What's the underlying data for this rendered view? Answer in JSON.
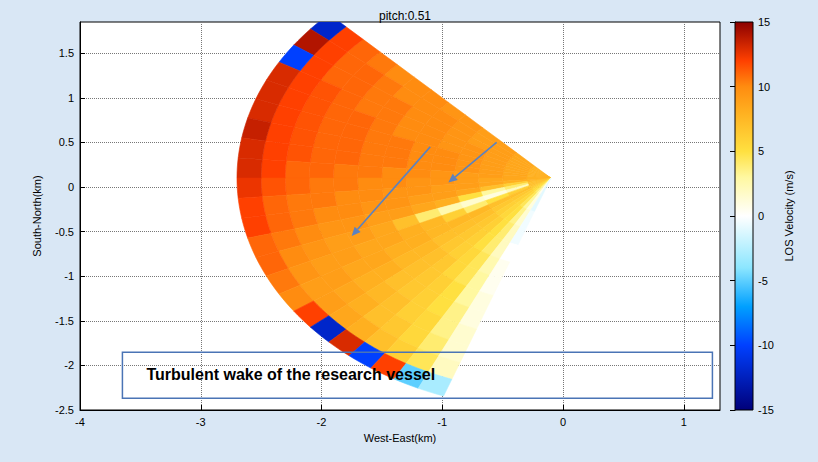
{
  "chart_data": {
    "type": "polar_heatmap",
    "title": "pitch:0.51",
    "x_label": "West-East(km)",
    "y_label": "South-North(km)",
    "xlim": [
      -4,
      1.3
    ],
    "xticks": [
      -4,
      -3,
      -2,
      -1,
      0,
      1
    ],
    "ylim": [
      -2.5,
      1.85
    ],
    "yticks": [
      -2.5,
      -2,
      -1.5,
      -1,
      -0.5,
      0,
      0.5,
      1,
      1.5
    ],
    "grid": true,
    "origin": [
      -0.1,
      0.1
    ],
    "azimuth_edges": [
      135,
      140,
      145,
      150,
      155,
      160,
      165,
      170,
      175,
      180,
      185,
      190,
      195,
      200,
      205,
      210,
      215,
      220,
      225,
      230,
      235,
      240,
      245,
      250
    ],
    "range_edges": [
      0,
      0.2,
      0.4,
      0.6,
      0.8,
      1.0,
      1.2,
      1.4,
      1.6,
      1.8,
      2.0,
      2.2,
      2.4,
      2.6
    ],
    "values": [
      [
        8,
        8.5,
        9,
        9,
        9.5,
        9.5,
        10,
        10,
        10,
        10.5,
        11,
        12,
        -12
      ],
      [
        8,
        8.5,
        9,
        9,
        9.5,
        10,
        10,
        10,
        10.5,
        11,
        11,
        12,
        14
      ],
      [
        8,
        8.5,
        9,
        9,
        9.5,
        10,
        10,
        10.5,
        10.5,
        11,
        11,
        12,
        -10
      ],
      [
        8,
        8.5,
        9,
        9.5,
        9.5,
        10,
        10,
        10.5,
        10.5,
        11,
        11.5,
        12,
        13
      ],
      [
        8,
        8.5,
        9,
        9.5,
        9.5,
        10,
        10,
        10.5,
        11,
        11,
        11.5,
        12,
        13
      ],
      [
        8,
        8.5,
        9,
        9.5,
        10,
        10,
        10.5,
        10.5,
        11,
        11,
        11.5,
        12,
        13
      ],
      [
        8,
        8.5,
        9,
        9.5,
        10,
        10,
        10.5,
        10.5,
        11,
        11,
        11.5,
        12,
        13.5
      ],
      [
        8,
        8.5,
        9,
        9.5,
        10,
        10,
        10.5,
        10.5,
        11,
        11,
        11.5,
        12,
        13
      ],
      [
        8,
        8.5,
        9,
        9,
        9.5,
        10,
        10,
        10.5,
        10.5,
        11,
        11,
        12,
        13
      ],
      [
        8,
        8.5,
        8.5,
        9,
        9.5,
        9.5,
        10,
        10,
        10.5,
        10.5,
        11,
        11.5,
        12.5
      ],
      [
        8,
        8,
        8.5,
        9,
        9,
        9.5,
        9.5,
        10,
        10,
        10.5,
        10.5,
        11,
        12
      ],
      [
        7.5,
        6,
        7,
        8.5,
        9,
        9,
        9.5,
        9.5,
        10,
        10,
        10.5,
        11,
        12
      ],
      [
        7,
        4,
        3,
        5,
        8,
        8.5,
        9,
        9,
        9.5,
        9.5,
        10,
        10.5,
        11
      ],
      [
        7,
        2,
        1,
        1.5,
        2.5,
        4,
        7,
        8.5,
        9,
        9,
        9.5,
        10,
        11
      ],
      [
        7,
        6,
        5,
        4,
        6,
        7.5,
        8,
        8.5,
        8.5,
        9,
        9,
        9.5,
        10.5
      ],
      [
        6.5,
        7,
        7,
        7.5,
        7.5,
        7.5,
        8,
        8,
        8.5,
        8.5,
        9,
        9,
        10
      ],
      [
        6,
        6.5,
        6.5,
        7,
        7,
        7,
        7.5,
        7.5,
        8,
        8,
        8.5,
        9,
        12
      ],
      [
        5.5,
        6,
        6,
        6.5,
        6.5,
        6.5,
        7,
        7,
        7,
        7.5,
        8,
        8.5,
        -12
      ],
      [
        5,
        5.5,
        5.5,
        6,
        6,
        6,
        6.5,
        6.5,
        6.5,
        7,
        7,
        8,
        13
      ],
      [
        4,
        4.5,
        5,
        5,
        5,
        5.5,
        5.5,
        6,
        6,
        6,
        6.5,
        7,
        -10
      ],
      [
        2.5,
        3,
        3.5,
        4,
        4,
        4.5,
        4.5,
        5,
        5,
        5.5,
        5.5,
        6,
        12
      ],
      [
        0.5,
        1,
        1.5,
        2,
        2,
        2.5,
        3,
        3,
        3.5,
        3.5,
        4,
        4.5,
        -5
      ],
      [
        -1,
        -1,
        -0.5,
        -0.5,
        0,
        0.5,
        0.5,
        1,
        1,
        1.5,
        1.5,
        2,
        -3
      ]
    ],
    "colorbar": {
      "label": "LOS Velocity (m/s)",
      "range": [
        -15,
        15
      ],
      "ticks": [
        -15,
        -10,
        -5,
        0,
        5,
        10,
        15
      ]
    },
    "annotations": [
      {
        "text": "Turbulent wake of the research vessel",
        "x": -3.45,
        "y": -2.1
      }
    ]
  }
}
